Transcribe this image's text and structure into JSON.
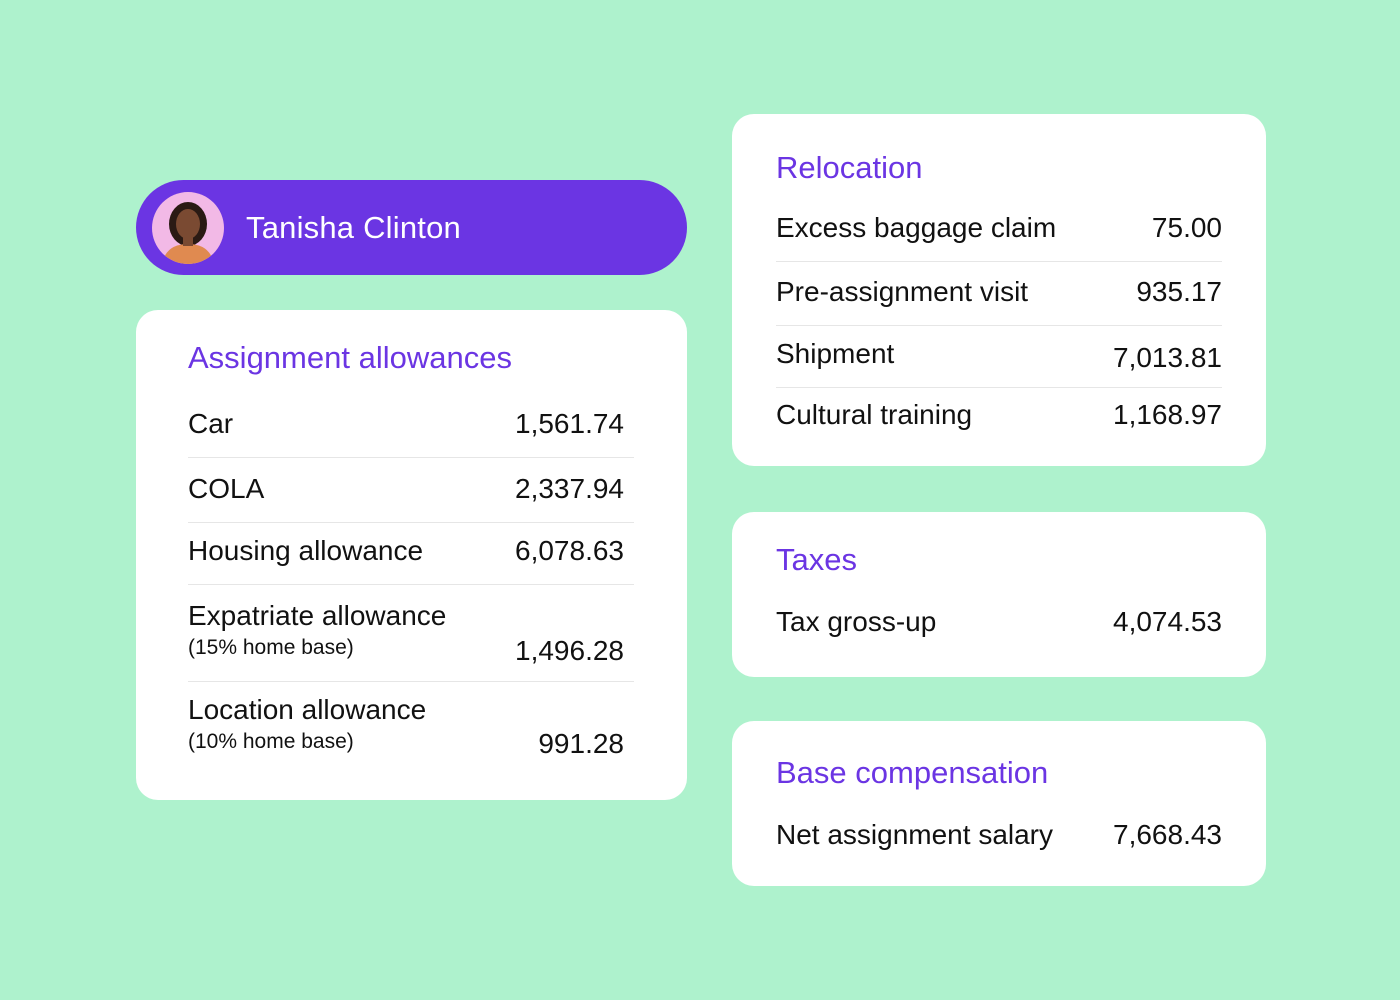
{
  "user": {
    "name": "Tanisha Clinton",
    "avatar_bg": "#f2b9e6"
  },
  "assignment": {
    "title": "Assignment allowances",
    "rows": [
      {
        "label": "Car",
        "sub": "",
        "value": "1,561.74"
      },
      {
        "label": "COLA",
        "sub": "",
        "value": "2,337.94"
      },
      {
        "label": "Housing allowance",
        "sub": "",
        "value": "6,078.63"
      },
      {
        "label": "Expatriate allowance",
        "sub": "(15% home base)",
        "value": "1,496.28"
      },
      {
        "label": "Location allowance",
        "sub": "(10% home base)",
        "value": "991.28"
      }
    ]
  },
  "relocation": {
    "title": "Relocation",
    "rows": [
      {
        "label": "Excess baggage claim",
        "value": "75.00"
      },
      {
        "label": "Pre-assignment visit",
        "value": "935.17"
      },
      {
        "label": "Shipment",
        "value": "7,013.81"
      },
      {
        "label": "Cultural training",
        "value": "1,168.97"
      }
    ]
  },
  "taxes": {
    "title": "Taxes",
    "rows": [
      {
        "label": "Tax gross-up",
        "value": "4,074.53"
      }
    ]
  },
  "base": {
    "title": "Base compensation",
    "rows": [
      {
        "label": "Net assignment salary",
        "value": "7,668.43"
      }
    ]
  },
  "colors": {
    "background": "#aef2cd",
    "accent": "#6b35e3",
    "card": "#ffffff"
  }
}
